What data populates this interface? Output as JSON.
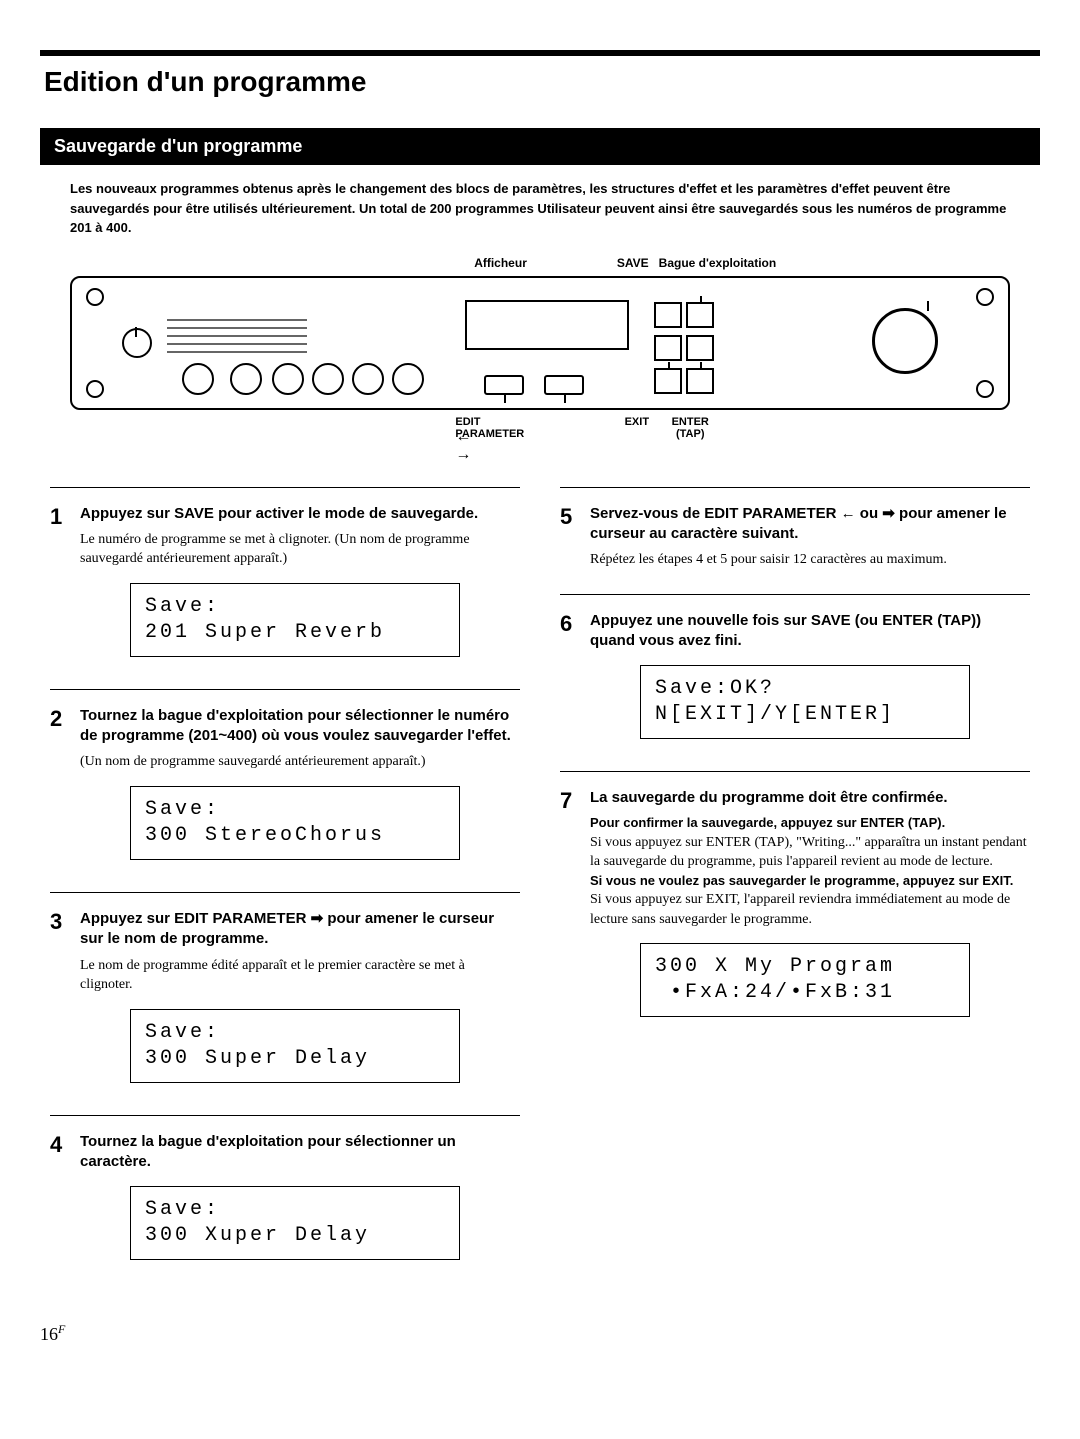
{
  "page_title": "Edition d'un programme",
  "section_title": "Sauvegarde d'un programme",
  "intro": "Les nouveaux programmes obtenus après le changement des blocs de paramètres, les structures d'effet et les paramètres d'effet peuvent être sauvegardés pour être utilisés ultérieurement. Un total de 200 programmes Utilisateur peuvent ainsi être sauvegardés sous les numéros de programme 201 à 400.",
  "device_labels": {
    "afficheur": "Afficheur",
    "save": "SAVE",
    "bague": "Bague d'exploitation",
    "edit_param": "EDIT PARAMETER",
    "exit": "EXIT",
    "enter_tap": "ENTER\n(TAP)",
    "arrows": "← →"
  },
  "steps_left": [
    {
      "num": "1",
      "title": "Appuyez sur SAVE pour activer le mode de sauvegarde.",
      "text": "Le numéro de programme se met à clignoter.\n(Un nom de programme sauvegardé antérieurement apparaît.)",
      "display": "Save:\n201 Super Reverb"
    },
    {
      "num": "2",
      "title": "Tournez la bague d'exploitation pour sélectionner le numéro de programme (201~400) où vous voulez sauvegarder l'effet.",
      "text": "(Un nom de programme sauvegardé antérieurement apparaît.)",
      "display": "Save:\n300 StereoChorus"
    },
    {
      "num": "3",
      "title_parts": [
        "Appuyez sur EDIT PARAMETER ",
        "➡",
        " pour amener le curseur sur le nom de programme."
      ],
      "text": "Le nom de programme édité apparaît et le premier caractère se met à clignoter.",
      "display": "Save:\n300 Super Delay"
    },
    {
      "num": "4",
      "title": "Tournez la bague d'exploitation pour sélectionner un caractère.",
      "display": "Save:\n300 Xuper Delay"
    }
  ],
  "steps_right": [
    {
      "num": "5",
      "title_parts": [
        "Servez-vous de EDIT PARAMETER ",
        "←",
        " ou ",
        "➡",
        " pour amener le curseur au caractère suivant."
      ],
      "text": "Répétez les étapes 4 et 5 pour saisir 12 caractères au maximum."
    },
    {
      "num": "6",
      "title": "Appuyez une nouvelle fois sur SAVE (ou ENTER (TAP)) quand vous avez fini.",
      "display": "Save:OK?\nN[EXIT]/Y[ENTER]"
    },
    {
      "num": "7",
      "title": "La sauvegarde du programme doit être confirmée.",
      "rich": [
        {
          "b": true,
          "t": "Pour confirmer la sauvegarde, appuyez sur ENTER (TAP)."
        },
        {
          "b": false,
          "t": "Si vous appuyez sur ENTER (TAP), \"Writing...\" apparaîtra un instant pendant la sauvegarde du programme, puis l'appareil revient au mode de lecture."
        },
        {
          "b": true,
          "t": "Si vous ne voulez pas sauvegarder le programme, appuyez sur EXIT."
        },
        {
          "b": false,
          "t": "Si vous appuyez sur EXIT, l'appareil reviendra immédiatement au mode de lecture sans sauvegarder le programme."
        }
      ],
      "display": "300 X My Program\n •FxA:24/•FxB:31"
    }
  ],
  "page_number": "16",
  "page_number_suffix": "F"
}
